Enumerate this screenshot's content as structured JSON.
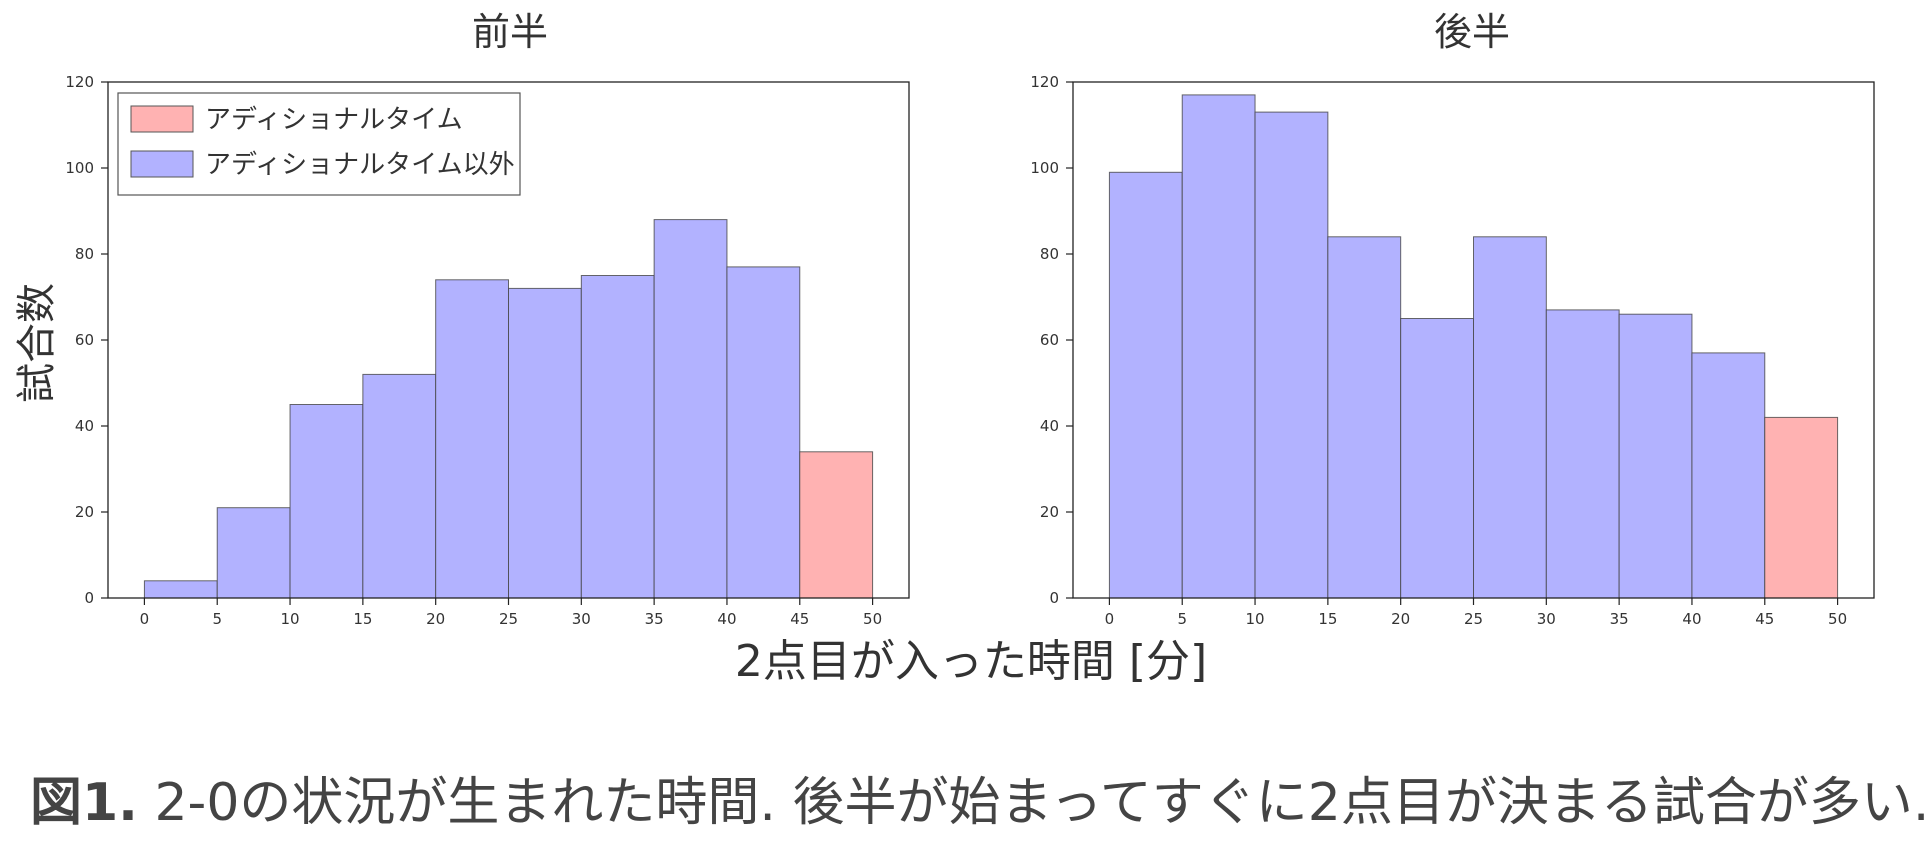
{
  "chart_data": [
    {
      "type": "bar",
      "title": "前半",
      "bin_edges": [
        0,
        5,
        10,
        15,
        20,
        25,
        30,
        35,
        40,
        45,
        50
      ],
      "x_ticks": [
        "0",
        "5",
        "10",
        "15",
        "20",
        "25",
        "30",
        "35",
        "40",
        "45",
        "50"
      ],
      "y_ticks": [
        "0",
        "20",
        "40",
        "60",
        "80",
        "100",
        "120"
      ],
      "xlim": [
        -2.5,
        52.5
      ],
      "ylim": [
        0,
        120
      ],
      "series": [
        {
          "name": "アディショナルタイム以外",
          "color": "#b2b2ff",
          "values": [
            4,
            21,
            45,
            52,
            74,
            72,
            75,
            88,
            77,
            0
          ]
        },
        {
          "name": "アディショナルタイム",
          "color": "#ffb2b2",
          "values": [
            0,
            0,
            0,
            0,
            0,
            0,
            0,
            0,
            0,
            34
          ]
        }
      ],
      "legend": "top-left",
      "grid": false
    },
    {
      "type": "bar",
      "title": "後半",
      "bin_edges": [
        0,
        5,
        10,
        15,
        20,
        25,
        30,
        35,
        40,
        45,
        50
      ],
      "x_ticks": [
        "0",
        "5",
        "10",
        "15",
        "20",
        "25",
        "30",
        "35",
        "40",
        "45",
        "50"
      ],
      "y_ticks": [
        "0",
        "20",
        "40",
        "60",
        "80",
        "100",
        "120"
      ],
      "xlim": [
        -2.5,
        52.5
      ],
      "ylim": [
        0,
        120
      ],
      "series": [
        {
          "name": "アディショナルタイム以外",
          "color": "#b2b2ff",
          "values": [
            99,
            117,
            113,
            84,
            65,
            84,
            67,
            66,
            57,
            0
          ]
        },
        {
          "name": "アディショナルタイム",
          "color": "#ffb2b2",
          "values": [
            0,
            0,
            0,
            0,
            0,
            0,
            0,
            0,
            0,
            42
          ]
        }
      ],
      "grid": false
    }
  ],
  "shared": {
    "ylabel": "試合数",
    "xlabel": "2点目が入った時間 [分]"
  },
  "legend": {
    "items": [
      {
        "label": "アディショナルタイム",
        "color": "#ffb2b2"
      },
      {
        "label": "アディショナルタイム以外",
        "color": "#b2b2ff"
      }
    ]
  },
  "caption": {
    "lead": "図1.",
    "text": " 2-0の状況が生まれた時間. 後半が始まってすぐに2点目が決まる試合が多い."
  }
}
